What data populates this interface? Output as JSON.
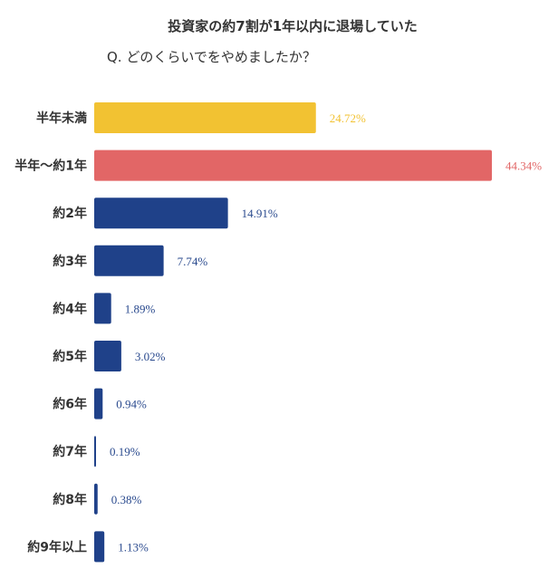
{
  "chart_data": {
    "type": "bar",
    "orientation": "horizontal",
    "title": "投資家の約7割が1年以内に退場していた",
    "subtitle": "Q. どのくらいでをやめましたか？",
    "categories": [
      "半年未満",
      "半年〜約1年",
      "約2年",
      "約3年",
      "約4年",
      "約5年",
      "約6年",
      "約7年",
      "約8年",
      "約9年以上"
    ],
    "values": [
      24.72,
      44.34,
      14.91,
      7.74,
      1.89,
      3.02,
      0.94,
      0.19,
      0.38,
      1.13
    ],
    "value_labels": [
      "24.72%",
      "44.34%",
      "14.91%",
      "7.74%",
      "1.89%",
      "3.02%",
      "0.94%",
      "0.19%",
      "0.38%",
      "1.13%"
    ],
    "colors": [
      "#F2C232",
      "#E26666",
      "#1F4189",
      "#1F4189",
      "#1F4189",
      "#1F4189",
      "#1F4189",
      "#1F4189",
      "#1F4189",
      "#1F4189"
    ],
    "label_colors": [
      "#F2C232",
      "#E26666",
      "#2A4A8E",
      "#2A4A8E",
      "#2A4A8E",
      "#2A4A8E",
      "#2A4A8E",
      "#2A4A8E",
      "#2A4A8E",
      "#2A4A8E"
    ],
    "xlabel": "",
    "ylabel": "",
    "xlim": [
      0,
      44.34
    ],
    "grid": false,
    "legend": "none"
  }
}
